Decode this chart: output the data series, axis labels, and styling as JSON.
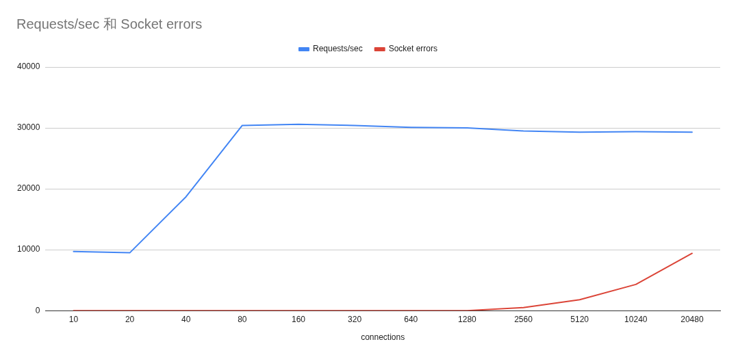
{
  "chart_data": {
    "type": "line",
    "title": "Requests/sec 和 Socket errors",
    "xlabel": "connections",
    "categories": [
      "10",
      "20",
      "40",
      "80",
      "160",
      "320",
      "640",
      "1280",
      "2560",
      "5120",
      "10240",
      "20480"
    ],
    "series": [
      {
        "name": "Requests/sec",
        "color": "#4285f4",
        "values": [
          9700,
          9500,
          18700,
          30400,
          30600,
          30400,
          30100,
          30000,
          29500,
          29300,
          29400,
          29300
        ]
      },
      {
        "name": "Socket errors",
        "color": "#db4437",
        "values": [
          0,
          0,
          0,
          0,
          0,
          0,
          0,
          0,
          500,
          1800,
          4300,
          9400
        ]
      }
    ],
    "ylim": [
      0,
      40000
    ],
    "yticks": [
      0,
      10000,
      20000,
      30000,
      40000
    ],
    "grid": "y",
    "legend": "top",
    "marker": "none",
    "line_style": "solid"
  }
}
